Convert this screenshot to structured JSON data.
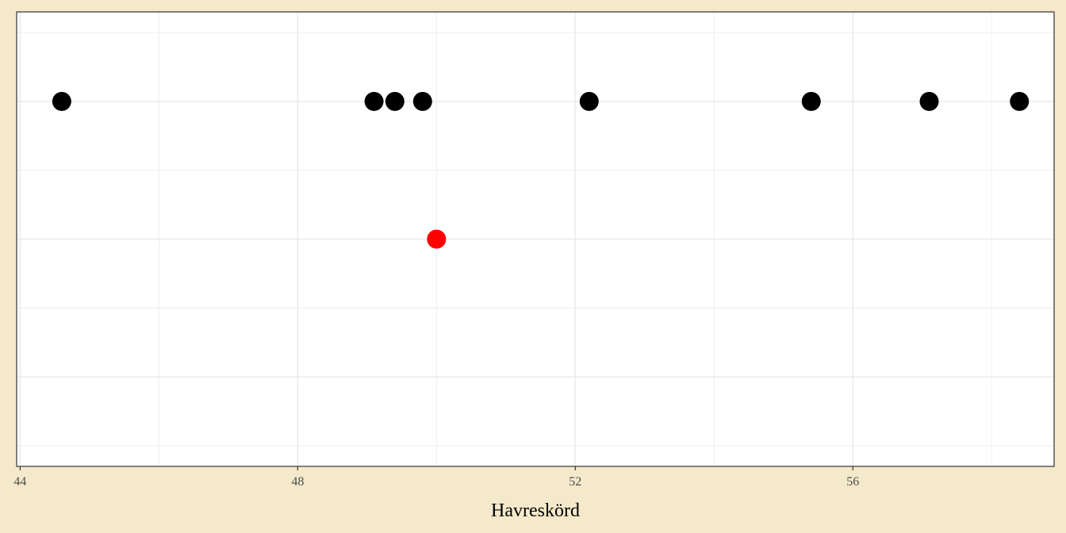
{
  "chart_data": {
    "type": "scatter",
    "xlabel": "Havreskörd",
    "ylabel": "",
    "title": "",
    "xlim": [
      43.95,
      58.9
    ],
    "ylim": [
      0.35,
      3.65
    ],
    "grid": true,
    "x_ticks": [
      44,
      48,
      52,
      56
    ],
    "x_tick_labels": [
      "44",
      "48",
      "52",
      "56"
    ],
    "series": [
      {
        "color": "#000000",
        "points": [
          {
            "x": 44.6,
            "y": 3
          },
          {
            "x": 49.1,
            "y": 3
          },
          {
            "x": 49.4,
            "y": 3
          },
          {
            "x": 49.8,
            "y": 3
          },
          {
            "x": 52.2,
            "y": 3
          },
          {
            "x": 55.4,
            "y": 3
          },
          {
            "x": 57.1,
            "y": 3
          },
          {
            "x": 58.4,
            "y": 3
          }
        ]
      },
      {
        "color": "#ff0000",
        "points": [
          {
            "x": 50.0,
            "y": 2
          }
        ]
      }
    ],
    "colors": {
      "background": "#f4e9ca",
      "panel": "#ffffff",
      "grid": "#ebebeb",
      "border": "#333333"
    }
  }
}
